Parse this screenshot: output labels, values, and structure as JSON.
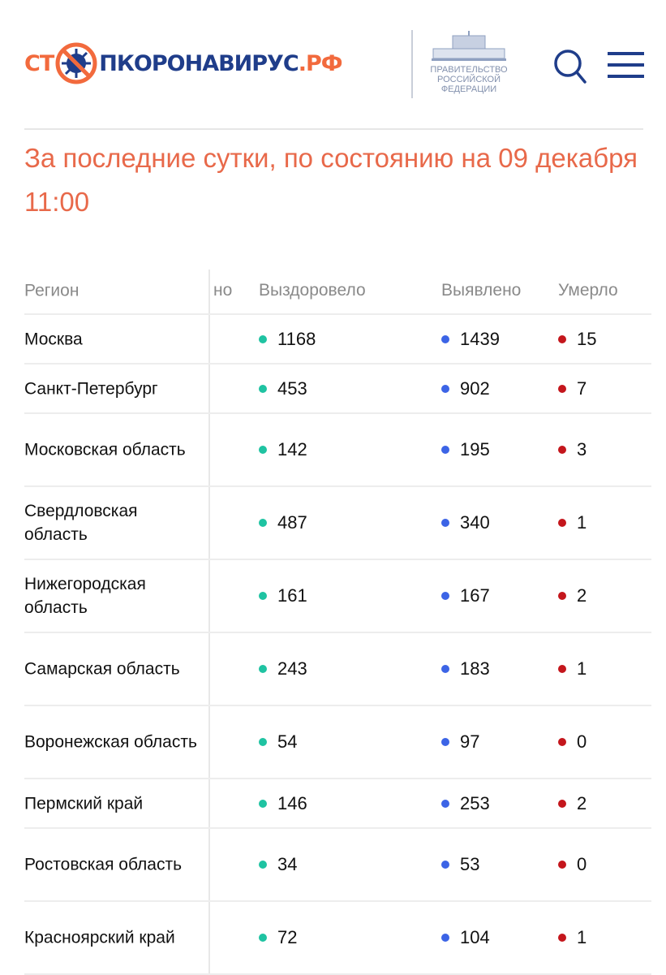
{
  "header": {
    "logo_text": {
      "part1": "СТ",
      "part2": "ПКОРОНАВИРУС",
      "part3": ".РФ"
    },
    "gov_text": [
      "ПРАВИТЕЛЬСТВО",
      "РОССИЙСКОЙ",
      "ФЕДЕРАЦИИ"
    ],
    "icons": [
      "virus-stop-icon",
      "government-building-icon",
      "search-icon",
      "menu-icon"
    ],
    "colors": {
      "accent": "#f26a3d",
      "brand": "#1f3d8a"
    }
  },
  "title": "За последние сутки, по состоянию на 09 декабря 11:00",
  "table": {
    "headers": {
      "region": "Регион",
      "truncated": "но",
      "recovered": "Выздоровело",
      "detected": "Выявлено",
      "died": "Умерло"
    },
    "colors": {
      "recovered": "#1fc3a2",
      "detected": "#3c64e6",
      "died": "#c4161c"
    },
    "rows": [
      {
        "region": "Москва",
        "recovered": "1168",
        "detected": "1439",
        "died": "15"
      },
      {
        "region": "Санкт-Петербург",
        "recovered": "453",
        "detected": "902",
        "died": "7"
      },
      {
        "region": "Московская область",
        "recovered": "142",
        "detected": "195",
        "died": "3"
      },
      {
        "region": "Свердловская область",
        "recovered": "487",
        "detected": "340",
        "died": "1"
      },
      {
        "region": "Нижегородская область",
        "recovered": "161",
        "detected": "167",
        "died": "2"
      },
      {
        "region": "Самарская область",
        "recovered": "243",
        "detected": "183",
        "died": "1"
      },
      {
        "region": "Воронежская область",
        "recovered": "54",
        "detected": "97",
        "died": "0"
      },
      {
        "region": "Пермский край",
        "recovered": "146",
        "detected": "253",
        "died": "2"
      },
      {
        "region": "Ростовская область",
        "recovered": "34",
        "detected": "53",
        "died": "0"
      },
      {
        "region": "Красноярский край",
        "recovered": "72",
        "detected": "104",
        "died": "1"
      }
    ]
  }
}
